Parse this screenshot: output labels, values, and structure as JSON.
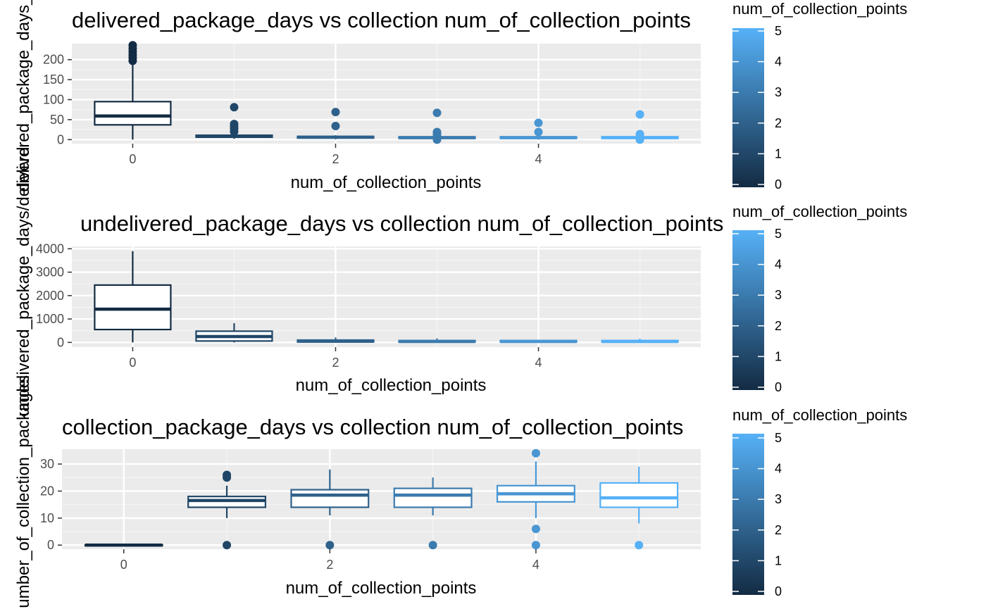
{
  "colors": {
    "panel_background": "#ebebeb",
    "grid_major": "#ffffff",
    "grid_minor": "#f5f5f5",
    "tick_text": "#4d4d4d",
    "gradient_low": "#132b43",
    "gradient_high": "#56b1f7"
  },
  "chart_data": [
    {
      "type": "boxplot",
      "title": "delivered_package_days vs collection num_of_collection_points",
      "xlabel": "num_of_collection_points",
      "ylabel": "delivered_package_days_",
      "xlim": [
        -0.6,
        5.6
      ],
      "ylim": [
        -10,
        240
      ],
      "x_ticks": [
        0,
        2,
        4
      ],
      "y_ticks": [
        0,
        50,
        100,
        150,
        200
      ],
      "grid": true,
      "legend": {
        "title": "num_of_collection_points",
        "position": "right",
        "scale": "continuous",
        "ticks": [
          0,
          1,
          2,
          3,
          4,
          5
        ]
      },
      "boxes": [
        {
          "x": 0,
          "q1": 37,
          "median": 59,
          "q3": 95,
          "whisker_low": 0,
          "whisker_high": 188,
          "outliers": [
            197,
            205,
            212,
            220,
            228,
            236
          ]
        },
        {
          "x": 1,
          "q1": 6,
          "median": 8,
          "q3": 11,
          "whisker_low": 2,
          "whisker_high": 16,
          "outliers": [
            20,
            27,
            33,
            39,
            81
          ]
        },
        {
          "x": 2,
          "q1": 4,
          "median": 6,
          "q3": 8,
          "whisker_low": 1,
          "whisker_high": 11,
          "outliers": [
            34,
            69
          ]
        },
        {
          "x": 3,
          "q1": 3,
          "median": 5,
          "q3": 7,
          "whisker_low": 0,
          "whisker_high": 10,
          "outliers": [
            0,
            10,
            15,
            19,
            67
          ]
        },
        {
          "x": 4,
          "q1": 3,
          "median": 5,
          "q3": 7,
          "whisker_low": 0,
          "whisker_high": 10,
          "outliers": [
            19,
            42
          ]
        },
        {
          "x": 5,
          "q1": 3,
          "median": 5,
          "q3": 7,
          "whisker_low": 0,
          "whisker_high": 10,
          "outliers": [
            0,
            5,
            9,
            14,
            63
          ]
        }
      ]
    },
    {
      "type": "boxplot",
      "title": "undelivered_package_days vs collection num_of_collection_points",
      "xlabel": "num_of_collection_points",
      "ylabel": "undelivered_package_days/deliverd",
      "xlim": [
        -0.6,
        5.6
      ],
      "ylim": [
        -200,
        4100
      ],
      "x_ticks": [
        0,
        2,
        4
      ],
      "y_ticks": [
        0,
        1000,
        2000,
        3000,
        4000
      ],
      "grid": true,
      "legend": {
        "title": "num_of_collection_points",
        "position": "right",
        "scale": "continuous",
        "ticks": [
          0,
          1,
          2,
          3,
          4,
          5
        ]
      },
      "boxes": [
        {
          "x": 0,
          "q1": 550,
          "median": 1420,
          "q3": 2450,
          "whisker_low": 0,
          "whisker_high": 3900,
          "outliers": []
        },
        {
          "x": 1,
          "q1": 60,
          "median": 250,
          "q3": 480,
          "whisker_low": 0,
          "whisker_high": 820,
          "outliers": []
        },
        {
          "x": 2,
          "q1": 20,
          "median": 50,
          "q3": 100,
          "whisker_low": 0,
          "whisker_high": 210,
          "outliers": []
        },
        {
          "x": 3,
          "q1": 15,
          "median": 40,
          "q3": 80,
          "whisker_low": 0,
          "whisker_high": 170,
          "outliers": []
        },
        {
          "x": 4,
          "q1": 15,
          "median": 40,
          "q3": 80,
          "whisker_low": 0,
          "whisker_high": 110,
          "outliers": []
        },
        {
          "x": 5,
          "q1": 15,
          "median": 40,
          "q3": 80,
          "whisker_low": 0,
          "whisker_high": 160,
          "outliers": []
        }
      ]
    },
    {
      "type": "boxplot",
      "title": "collection_package_days vs collection num_of_collection_points",
      "xlabel": "num_of_collection_points",
      "ylabel": "number_of_collection_packages",
      "xlim": [
        -0.6,
        5.6
      ],
      "ylim": [
        -1.5,
        35.5
      ],
      "x_ticks": [
        0,
        2,
        4
      ],
      "y_ticks": [
        0,
        10,
        20,
        30
      ],
      "grid": true,
      "legend": {
        "title": "num_of_collection_points",
        "position": "right",
        "scale": "continuous",
        "ticks": [
          0,
          1,
          2,
          3,
          4,
          5
        ]
      },
      "boxes": [
        {
          "x": 0,
          "q1": 0,
          "median": 0,
          "q3": 0,
          "whisker_low": 0,
          "whisker_high": 0,
          "outliers": []
        },
        {
          "x": 1,
          "q1": 14,
          "median": 16.5,
          "q3": 18,
          "whisker_low": 10,
          "whisker_high": 22,
          "outliers": [
            0,
            25,
            26
          ]
        },
        {
          "x": 2,
          "q1": 14,
          "median": 18.5,
          "q3": 20.5,
          "whisker_low": 11,
          "whisker_high": 28,
          "outliers": [
            0
          ]
        },
        {
          "x": 3,
          "q1": 14,
          "median": 18.5,
          "q3": 21,
          "whisker_low": 11,
          "whisker_high": 25,
          "outliers": [
            0
          ]
        },
        {
          "x": 4,
          "q1": 16,
          "median": 19,
          "q3": 22,
          "whisker_low": 10,
          "whisker_high": 31,
          "outliers": [
            0,
            6,
            34
          ]
        },
        {
          "x": 5,
          "q1": 14,
          "median": 17.5,
          "q3": 23,
          "whisker_low": 8,
          "whisker_high": 29,
          "outliers": [
            0
          ]
        }
      ]
    }
  ]
}
